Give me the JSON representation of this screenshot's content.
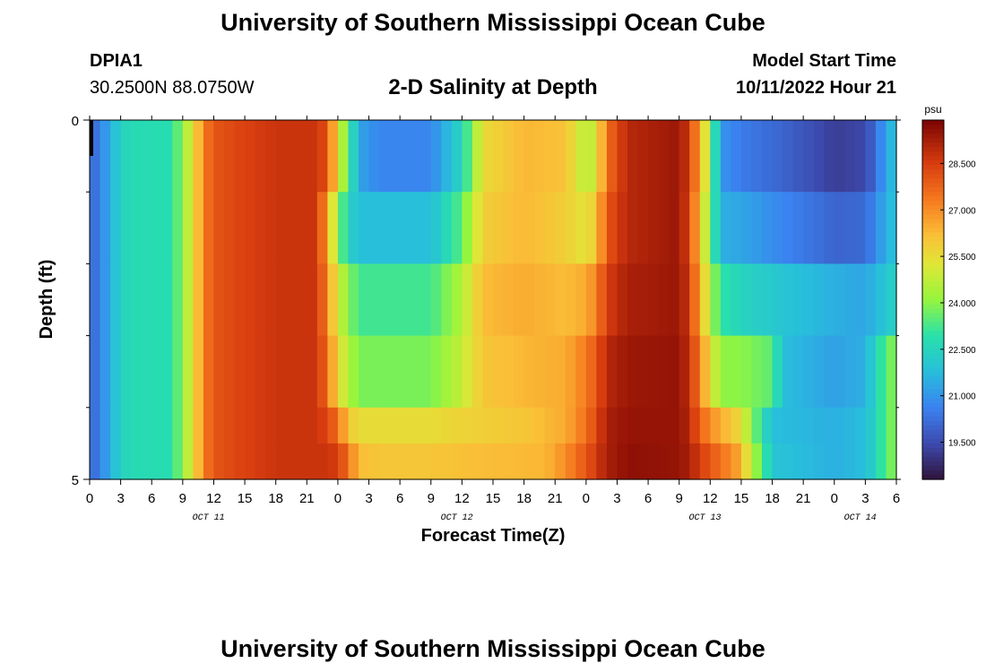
{
  "header": {
    "title": "University of Southern Mississippi Ocean Cube",
    "station": "DPIA1",
    "coordinates": "30.2500N  88.0750W",
    "subtitle": "2-D Salinity at Depth",
    "model_start_label": "Model Start Time",
    "model_start_value": "10/11/2022 Hour 21"
  },
  "footer": {
    "title": "University of Southern Mississippi Ocean Cube"
  },
  "chart_data": {
    "type": "heatmap",
    "title": "2-D Salinity at Depth",
    "xlabel": "Forecast Time(Z)",
    "ylabel": "Depth (ft)",
    "x_range_hours": [
      0,
      78
    ],
    "y_range_ft": [
      0,
      5
    ],
    "x_tick_labels": [
      "0",
      "3",
      "6",
      "9",
      "12",
      "15",
      "18",
      "21",
      "0",
      "3",
      "6",
      "9",
      "12",
      "15",
      "18",
      "21",
      "0",
      "3",
      "6",
      "9",
      "12",
      "15",
      "18",
      "21",
      "0",
      "3",
      "6"
    ],
    "y_tick_labels": [
      "0",
      "5"
    ],
    "date_labels": [
      {
        "label": "OCT 11",
        "hour": 11.5
      },
      {
        "label": "OCT 12",
        "hour": 35.5
      },
      {
        "label": "OCT 13",
        "hour": 59.5
      },
      {
        "label": "OCT 14",
        "hour": 74.5
      }
    ],
    "colorbar": {
      "unit": "psu",
      "min": 18.3,
      "max": 29.9,
      "tick_labels": [
        "28.500",
        "27.000",
        "25.500",
        "24.000",
        "22.500",
        "21.000",
        "19.500"
      ]
    },
    "layers": [
      {
        "depth_ft": [
          0.0,
          1.0
        ],
        "keyframes": [
          [
            0,
            20.0
          ],
          [
            1,
            20.6
          ],
          [
            2,
            21.5
          ],
          [
            3,
            22.4
          ],
          [
            4,
            22.7
          ],
          [
            8,
            22.8
          ],
          [
            9,
            24.2
          ],
          [
            10,
            25.3
          ],
          [
            11,
            27.2
          ],
          [
            12,
            28.0
          ],
          [
            14,
            28.3
          ],
          [
            18,
            28.7
          ],
          [
            22,
            28.7
          ],
          [
            23,
            28.1
          ],
          [
            24,
            25.3
          ],
          [
            25,
            23.5
          ],
          [
            26,
            21.3
          ],
          [
            28,
            20.7
          ],
          [
            33,
            20.7
          ],
          [
            36,
            22.5
          ],
          [
            38,
            25.5
          ],
          [
            42,
            26.3
          ],
          [
            46,
            26.1
          ],
          [
            48,
            24.5
          ],
          [
            49,
            25.2
          ],
          [
            50,
            27.5
          ],
          [
            52,
            29.0
          ],
          [
            57,
            29.4
          ],
          [
            58,
            28.5
          ],
          [
            59,
            26.5
          ],
          [
            60,
            24.2
          ],
          [
            61,
            21.0
          ],
          [
            63,
            20.5
          ],
          [
            67,
            20.0
          ],
          [
            72,
            19.2
          ],
          [
            75,
            19.4
          ],
          [
            76,
            20.2
          ],
          [
            77,
            21.3
          ],
          [
            78,
            22.0
          ]
        ]
      },
      {
        "depth_ft": [
          1.0,
          2.0
        ],
        "keyframes": [
          [
            0,
            20.0
          ],
          [
            1,
            20.6
          ],
          [
            2,
            21.5
          ],
          [
            3,
            22.4
          ],
          [
            4,
            22.7
          ],
          [
            8,
            22.8
          ],
          [
            9,
            24.2
          ],
          [
            10,
            25.3
          ],
          [
            11,
            27.2
          ],
          [
            12,
            28.0
          ],
          [
            14,
            28.3
          ],
          [
            18,
            28.7
          ],
          [
            22,
            28.7
          ],
          [
            23,
            26.5
          ],
          [
            24,
            24.0
          ],
          [
            25,
            22.5
          ],
          [
            26,
            21.8
          ],
          [
            33,
            21.8
          ],
          [
            36,
            23.5
          ],
          [
            38,
            25.8
          ],
          [
            42,
            26.3
          ],
          [
            46,
            25.8
          ],
          [
            48,
            25.3
          ],
          [
            49,
            26.0
          ],
          [
            50,
            28.0
          ],
          [
            52,
            29.0
          ],
          [
            57,
            29.4
          ],
          [
            58,
            28.3
          ],
          [
            59,
            26.0
          ],
          [
            60,
            23.8
          ],
          [
            61,
            21.5
          ],
          [
            63,
            21.3
          ],
          [
            67,
            20.7
          ],
          [
            72,
            20.0
          ],
          [
            75,
            20.1
          ],
          [
            76,
            20.8
          ],
          [
            77,
            21.5
          ],
          [
            78,
            22.0
          ]
        ]
      },
      {
        "depth_ft": [
          2.0,
          3.0
        ],
        "keyframes": [
          [
            0,
            20.0
          ],
          [
            1,
            20.6
          ],
          [
            2,
            21.5
          ],
          [
            3,
            22.4
          ],
          [
            4,
            22.7
          ],
          [
            8,
            22.8
          ],
          [
            9,
            24.2
          ],
          [
            10,
            25.3
          ],
          [
            11,
            27.2
          ],
          [
            12,
            28.0
          ],
          [
            14,
            28.3
          ],
          [
            18,
            28.7
          ],
          [
            22,
            28.7
          ],
          [
            23,
            27.0
          ],
          [
            24,
            25.0
          ],
          [
            25,
            24.0
          ],
          [
            26,
            23.2
          ],
          [
            33,
            23.2
          ],
          [
            36,
            24.5
          ],
          [
            38,
            26.2
          ],
          [
            42,
            26.5
          ],
          [
            46,
            26.2
          ],
          [
            48,
            26.5
          ],
          [
            49,
            27.2
          ],
          [
            50,
            28.5
          ],
          [
            52,
            29.2
          ],
          [
            57,
            29.4
          ],
          [
            58,
            28.6
          ],
          [
            59,
            26.5
          ],
          [
            60,
            24.5
          ],
          [
            61,
            23.0
          ],
          [
            63,
            22.5
          ],
          [
            67,
            22.0
          ],
          [
            72,
            21.5
          ],
          [
            75,
            21.3
          ],
          [
            76,
            21.7
          ],
          [
            77,
            22.0
          ],
          [
            78,
            22.5
          ]
        ]
      },
      {
        "depth_ft": [
          3.0,
          4.0
        ],
        "keyframes": [
          [
            0,
            20.0
          ],
          [
            1,
            20.6
          ],
          [
            2,
            21.5
          ],
          [
            3,
            22.4
          ],
          [
            4,
            22.7
          ],
          [
            8,
            22.8
          ],
          [
            9,
            24.2
          ],
          [
            10,
            25.3
          ],
          [
            11,
            27.2
          ],
          [
            12,
            28.0
          ],
          [
            14,
            28.3
          ],
          [
            18,
            28.7
          ],
          [
            22,
            28.7
          ],
          [
            23,
            27.5
          ],
          [
            24,
            25.5
          ],
          [
            25,
            24.5
          ],
          [
            26,
            23.8
          ],
          [
            33,
            23.8
          ],
          [
            36,
            24.8
          ],
          [
            38,
            26.0
          ],
          [
            42,
            26.3
          ],
          [
            46,
            26.5
          ],
          [
            48,
            27.3
          ],
          [
            49,
            28.0
          ],
          [
            50,
            29.0
          ],
          [
            52,
            29.4
          ],
          [
            57,
            29.5
          ],
          [
            58,
            28.8
          ],
          [
            59,
            27.2
          ],
          [
            60,
            25.5
          ],
          [
            61,
            24.0
          ],
          [
            63,
            24.0
          ],
          [
            66,
            23.5
          ],
          [
            67,
            21.8
          ],
          [
            72,
            21.2
          ],
          [
            75,
            21.5
          ],
          [
            76,
            22.5
          ],
          [
            77,
            23.5
          ],
          [
            78,
            24.0
          ]
        ]
      },
      {
        "depth_ft": [
          4.0,
          4.5
        ],
        "keyframes": [
          [
            0,
            20.0
          ],
          [
            1,
            20.6
          ],
          [
            2,
            21.5
          ],
          [
            3,
            22.4
          ],
          [
            4,
            22.7
          ],
          [
            8,
            22.8
          ],
          [
            9,
            24.2
          ],
          [
            10,
            25.3
          ],
          [
            11,
            27.2
          ],
          [
            12,
            28.0
          ],
          [
            14,
            28.3
          ],
          [
            18,
            28.7
          ],
          [
            22,
            28.7
          ],
          [
            23,
            28.3
          ],
          [
            24,
            27.5
          ],
          [
            25,
            26.0
          ],
          [
            26,
            25.5
          ],
          [
            33,
            25.5
          ],
          [
            36,
            25.7
          ],
          [
            42,
            26.0
          ],
          [
            46,
            26.5
          ],
          [
            48,
            27.5
          ],
          [
            49,
            28.3
          ],
          [
            50,
            29.2
          ],
          [
            52,
            29.5
          ],
          [
            57,
            29.5
          ],
          [
            58,
            29.0
          ],
          [
            59,
            27.8
          ],
          [
            60,
            27.0
          ],
          [
            61,
            26.5
          ],
          [
            63,
            25.5
          ],
          [
            64,
            24.0
          ],
          [
            66,
            21.8
          ],
          [
            72,
            21.5
          ],
          [
            75,
            21.8
          ],
          [
            76,
            22.5
          ],
          [
            77,
            23.5
          ],
          [
            78,
            24.0
          ]
        ]
      },
      {
        "depth_ft": [
          4.5,
          5.0
        ],
        "keyframes": [
          [
            0,
            20.0
          ],
          [
            1,
            20.6
          ],
          [
            2,
            21.5
          ],
          [
            3,
            22.4
          ],
          [
            4,
            22.7
          ],
          [
            8,
            22.8
          ],
          [
            9,
            24.2
          ],
          [
            10,
            25.3
          ],
          [
            11,
            27.2
          ],
          [
            12,
            28.0
          ],
          [
            14,
            28.3
          ],
          [
            18,
            28.7
          ],
          [
            22,
            28.7
          ],
          [
            23,
            28.7
          ],
          [
            24,
            28.5
          ],
          [
            25,
            27.5
          ],
          [
            26,
            26.2
          ],
          [
            28,
            26.0
          ],
          [
            33,
            26.0
          ],
          [
            38,
            26.2
          ],
          [
            44,
            26.3
          ],
          [
            46,
            27.0
          ],
          [
            48,
            28.0
          ],
          [
            49,
            28.6
          ],
          [
            50,
            29.2
          ],
          [
            52,
            29.6
          ],
          [
            57,
            29.5
          ],
          [
            58,
            29.2
          ],
          [
            59,
            28.5
          ],
          [
            61,
            27.5
          ],
          [
            63,
            26.5
          ],
          [
            64,
            24.5
          ],
          [
            65,
            23.5
          ],
          [
            66,
            22.0
          ],
          [
            72,
            21.5
          ],
          [
            75,
            21.8
          ],
          [
            76,
            22.5
          ],
          [
            77,
            23.5
          ],
          [
            78,
            24.0
          ]
        ]
      }
    ]
  }
}
